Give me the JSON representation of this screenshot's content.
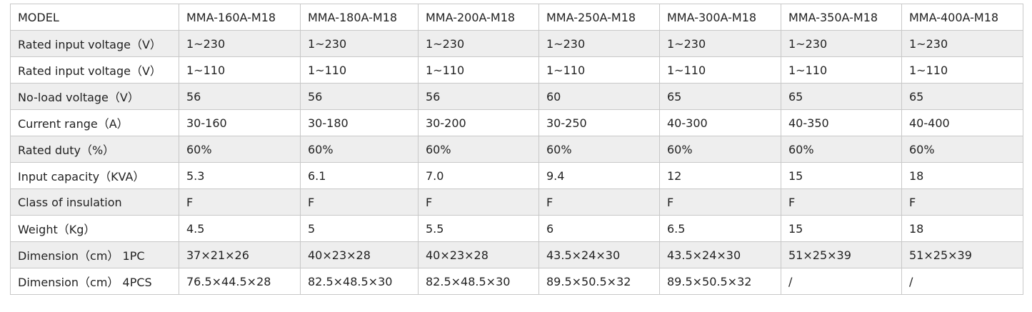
{
  "table": {
    "header": [
      "MODEL",
      "MMA-160A-M18",
      "MMA-180A-M18",
      "MMA-200A-M18",
      "MMA-250A-M18",
      "MMA-300A-M18",
      "MMA-350A-M18",
      "MMA-400A-M18"
    ],
    "rows": [
      [
        "Rated input voltage（V）",
        "1~230",
        "1~230",
        "1~230",
        "1~230",
        "1~230",
        "1~230",
        "1~230"
      ],
      [
        "Rated input voltage（V）",
        "1~110",
        "1~110",
        "1~110",
        "1~110",
        "1~110",
        "1~110",
        "1~110"
      ],
      [
        "No-load voltage（V）",
        "56",
        "56",
        "56",
        "60",
        "65",
        "65",
        "65"
      ],
      [
        "Current range（A）",
        "30-160",
        "30-180",
        "30-200",
        "30-250",
        "40-300",
        "40-350",
        "40-400"
      ],
      [
        "Rated duty（%）",
        "60%",
        "60%",
        "60%",
        "60%",
        "60%",
        "60%",
        "60%"
      ],
      [
        "Input capacity（KVA）",
        "5.3",
        "6.1",
        "7.0",
        "9.4",
        "12",
        "15",
        "18"
      ],
      [
        "Class of insulation",
        "F",
        "F",
        "F",
        "F",
        "F",
        "F",
        "F"
      ],
      [
        "Weight（Kg）",
        "4.5",
        "5",
        "5.5",
        "6",
        "6.5",
        "15",
        "18"
      ],
      [
        "Dimension（cm） 1PC",
        "37×21×26",
        "40×23×28",
        "40×23×28",
        "43.5×24×30",
        "43.5×24×30",
        "51×25×39",
        "51×25×39"
      ],
      [
        "Dimension（cm） 4PCS",
        "76.5×44.5×28",
        "82.5×48.5×30",
        "82.5×48.5×30",
        "89.5×50.5×32",
        "89.5×50.5×32",
        "/",
        "/"
      ]
    ]
  }
}
